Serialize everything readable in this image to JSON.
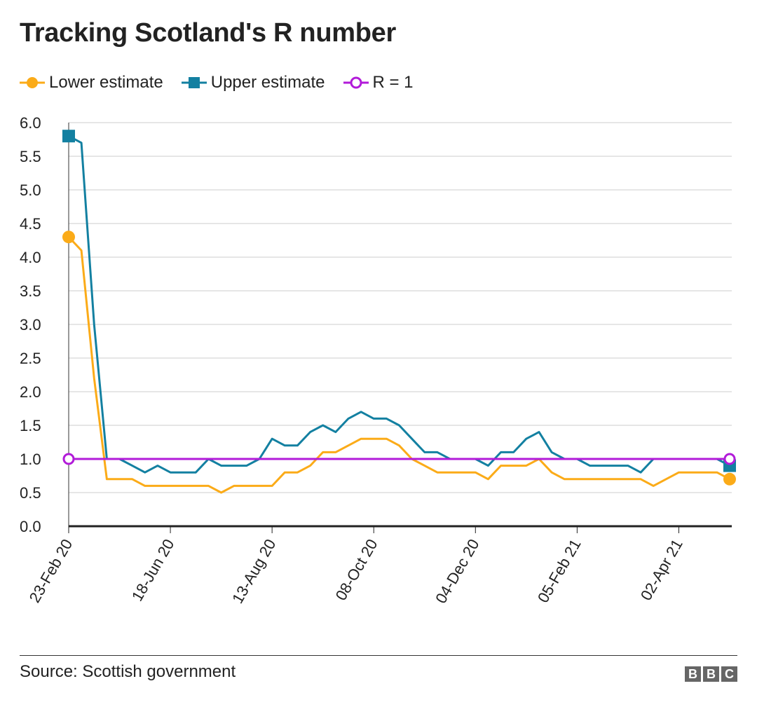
{
  "title": "Tracking Scotland's R number",
  "legend": [
    {
      "label": "Lower estimate",
      "color": "#fbab18",
      "marker": "circle"
    },
    {
      "label": "Upper estimate",
      "color": "#1380a1",
      "marker": "square"
    },
    {
      "label": "R = 1",
      "color": "#b21bd9",
      "marker": "circle-open"
    }
  ],
  "source": "Source: Scottish government",
  "brand": [
    "B",
    "B",
    "C"
  ],
  "chart_data": {
    "type": "line",
    "title": "Tracking Scotland's R number",
    "xlabel": "",
    "ylabel": "",
    "ylim": [
      0,
      6
    ],
    "yticks": [
      "0.0",
      "0.5",
      "1.0",
      "1.5",
      "2.0",
      "2.5",
      "3.0",
      "3.5",
      "4.0",
      "4.5",
      "5.0",
      "5.5",
      "6.0"
    ],
    "xtick_labels": [
      "23-Feb 20",
      "18-Jun 20",
      "13-Aug 20",
      "08-Oct 20",
      "04-Dec 20",
      "05-Feb 21",
      "02-Apr 21"
    ],
    "xtick_index": [
      0,
      8,
      16,
      24,
      32,
      40,
      48
    ],
    "grid": "horizontal",
    "series": [
      {
        "name": "Lower estimate",
        "color": "#fbab18",
        "values": [
          4.3,
          4.1,
          2.2,
          0.7,
          0.7,
          0.7,
          0.6,
          0.6,
          0.6,
          0.6,
          0.6,
          0.6,
          0.5,
          0.6,
          0.6,
          0.6,
          0.6,
          0.8,
          0.8,
          0.9,
          1.1,
          1.1,
          1.2,
          1.3,
          1.3,
          1.3,
          1.2,
          1.0,
          0.9,
          0.8,
          0.8,
          0.8,
          0.8,
          0.7,
          0.9,
          0.9,
          0.9,
          1.0,
          0.8,
          0.7,
          0.7,
          0.7,
          0.7,
          0.7,
          0.7,
          0.7,
          0.6,
          0.7,
          0.8,
          0.8,
          0.8,
          0.8,
          0.7
        ]
      },
      {
        "name": "Upper estimate",
        "color": "#1380a1",
        "values": [
          5.8,
          5.7,
          3.0,
          1.0,
          1.0,
          0.9,
          0.8,
          0.9,
          0.8,
          0.8,
          0.8,
          1.0,
          0.9,
          0.9,
          0.9,
          1.0,
          1.3,
          1.2,
          1.2,
          1.4,
          1.5,
          1.4,
          1.6,
          1.7,
          1.6,
          1.6,
          1.5,
          1.3,
          1.1,
          1.1,
          1.0,
          1.0,
          1.0,
          0.9,
          1.1,
          1.1,
          1.3,
          1.4,
          1.1,
          1.0,
          1.0,
          0.9,
          0.9,
          0.9,
          0.9,
          0.8,
          1.0,
          1.0,
          1.0,
          1.0,
          1.0,
          1.0,
          0.9
        ]
      },
      {
        "name": "R = 1",
        "color": "#b21bd9",
        "values": [
          1.0,
          1.0,
          1.0,
          1.0,
          1.0,
          1.0,
          1.0,
          1.0,
          1.0,
          1.0,
          1.0,
          1.0,
          1.0,
          1.0,
          1.0,
          1.0,
          1.0,
          1.0,
          1.0,
          1.0,
          1.0,
          1.0,
          1.0,
          1.0,
          1.0,
          1.0,
          1.0,
          1.0,
          1.0,
          1.0,
          1.0,
          1.0,
          1.0,
          1.0,
          1.0,
          1.0,
          1.0,
          1.0,
          1.0,
          1.0,
          1.0,
          1.0,
          1.0,
          1.0,
          1.0,
          1.0,
          1.0,
          1.0,
          1.0,
          1.0,
          1.0,
          1.0,
          1.0
        ]
      }
    ]
  }
}
